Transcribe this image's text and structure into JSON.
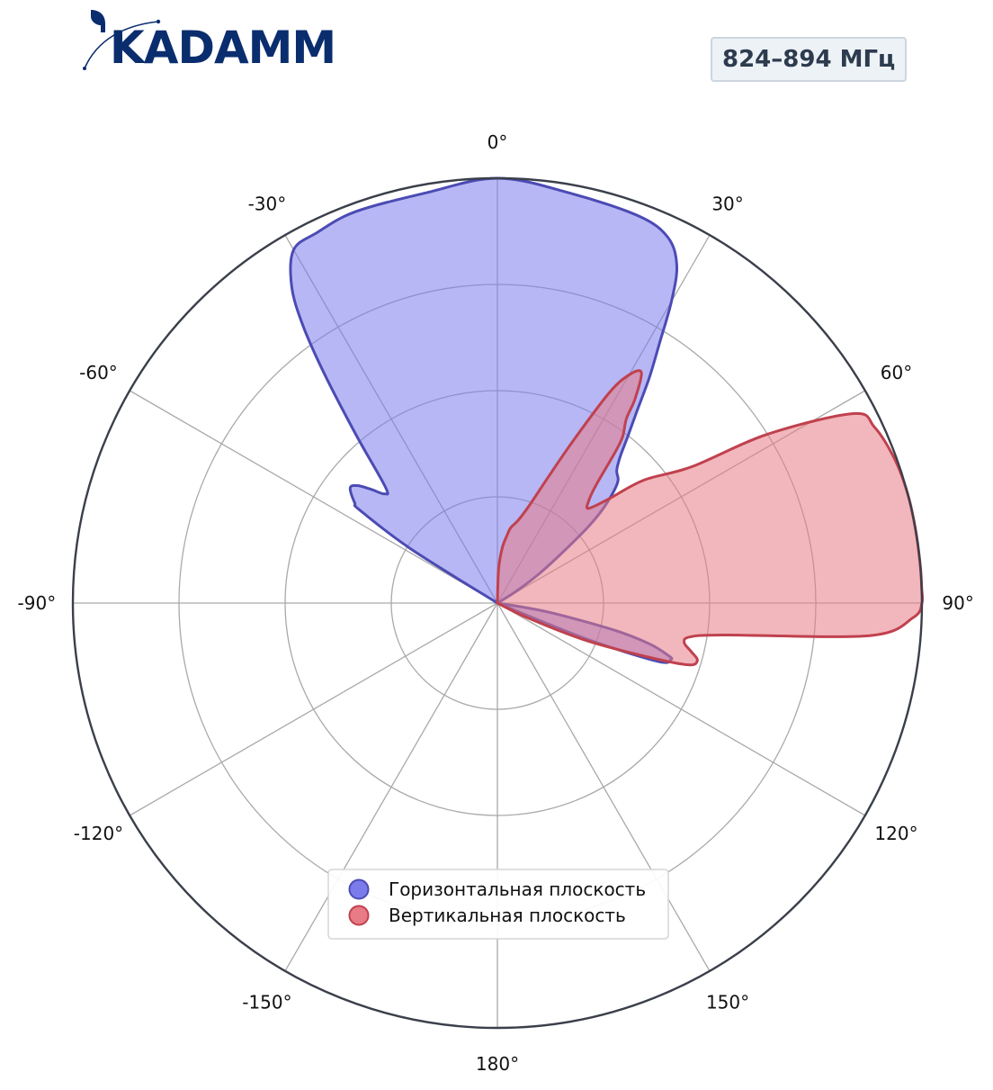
{
  "brand": {
    "name": "KADAMM",
    "color": "#0a2d6e"
  },
  "frequency_badge": {
    "text": "824–894 МГц",
    "text_color": "#2d3b4e"
  },
  "chart_data": {
    "type": "polar-area",
    "title": "",
    "theta_direction": "clockwise",
    "theta_zero": "top",
    "theta_ticks": [
      0,
      30,
      60,
      90,
      120,
      150,
      180,
      -150,
      -120,
      -90,
      -60,
      -30
    ],
    "theta_tick_labels": [
      "0°",
      "30°",
      "60°",
      "90°",
      "120°",
      "150°",
      "180°",
      "-150°",
      "-120°",
      "-90°",
      "-60°",
      "-30°"
    ],
    "radial_range": [
      0,
      1
    ],
    "radial_grid": [
      0.25,
      0.5,
      0.75,
      1.0
    ],
    "radial_tick_labels_visible": false,
    "grid": true,
    "legend_position": "lower-center",
    "series": [
      {
        "name": "Горизонтальная плоскость",
        "line_color": "#4b4bb4",
        "fill_color": "#7b7bec",
        "fill_opacity": 0.55,
        "theta": [
          -60,
          -58,
          -56,
          -55,
          -52,
          -50,
          -48,
          -46,
          -44,
          -40,
          -37,
          -35,
          -33,
          -30,
          -26,
          -20,
          -10,
          0,
          10,
          20,
          25,
          28,
          30,
          32,
          34,
          36,
          38,
          40,
          42,
          45,
          48,
          50,
          52,
          55,
          58,
          60
        ],
        "r": [
          0.0,
          0.24,
          0.39,
          0.41,
          0.44,
          0.43,
          0.4,
          0.37,
          0.38,
          0.52,
          0.68,
          0.8,
          0.89,
          0.96,
          0.97,
          0.98,
          0.98,
          1.0,
          0.98,
          0.97,
          0.95,
          0.9,
          0.82,
          0.72,
          0.64,
          0.56,
          0.5,
          0.45,
          0.42,
          0.4,
          0.34,
          0.28,
          0.2,
          0.12,
          0.05,
          0.0
        ]
      },
      {
        "name": "",
        "line_color": "#4b4bb4",
        "fill_color": "#7b7bec",
        "fill_opacity": 0.55,
        "theta": [
          96,
          100,
          103,
          105,
          107,
          108,
          110,
          112,
          116
        ],
        "r": [
          0.0,
          0.12,
          0.28,
          0.37,
          0.42,
          0.43,
          0.4,
          0.22,
          0.0
        ]
      },
      {
        "name": "Вертикальная плоскость",
        "line_color": "#c0414e",
        "fill_color": "#e87b85",
        "fill_opacity": 0.55,
        "theta": [
          0,
          2,
          5,
          8,
          10,
          14,
          18,
          22,
          25,
          28,
          30,
          32,
          34,
          35,
          37,
          38,
          40,
          42,
          44,
          47,
          50,
          55,
          58,
          62,
          65,
          70,
          75,
          80,
          85,
          88,
          90,
          92,
          95,
          98,
          100,
          102,
          104,
          106,
          108,
          110,
          113,
          116,
          120
        ],
        "r": [
          0.0,
          0.08,
          0.13,
          0.16,
          0.18,
          0.2,
          0.24,
          0.32,
          0.42,
          0.56,
          0.62,
          0.64,
          0.58,
          0.53,
          0.49,
          0.45,
          0.36,
          0.32,
          0.31,
          0.36,
          0.45,
          0.56,
          0.75,
          0.95,
          0.98,
          0.995,
          1.0,
          1.0,
          1.0,
          1.0,
          1.0,
          0.98,
          0.88,
          0.54,
          0.46,
          0.45,
          0.47,
          0.49,
          0.47,
          0.36,
          0.22,
          0.08,
          0.0
        ]
      }
    ]
  }
}
